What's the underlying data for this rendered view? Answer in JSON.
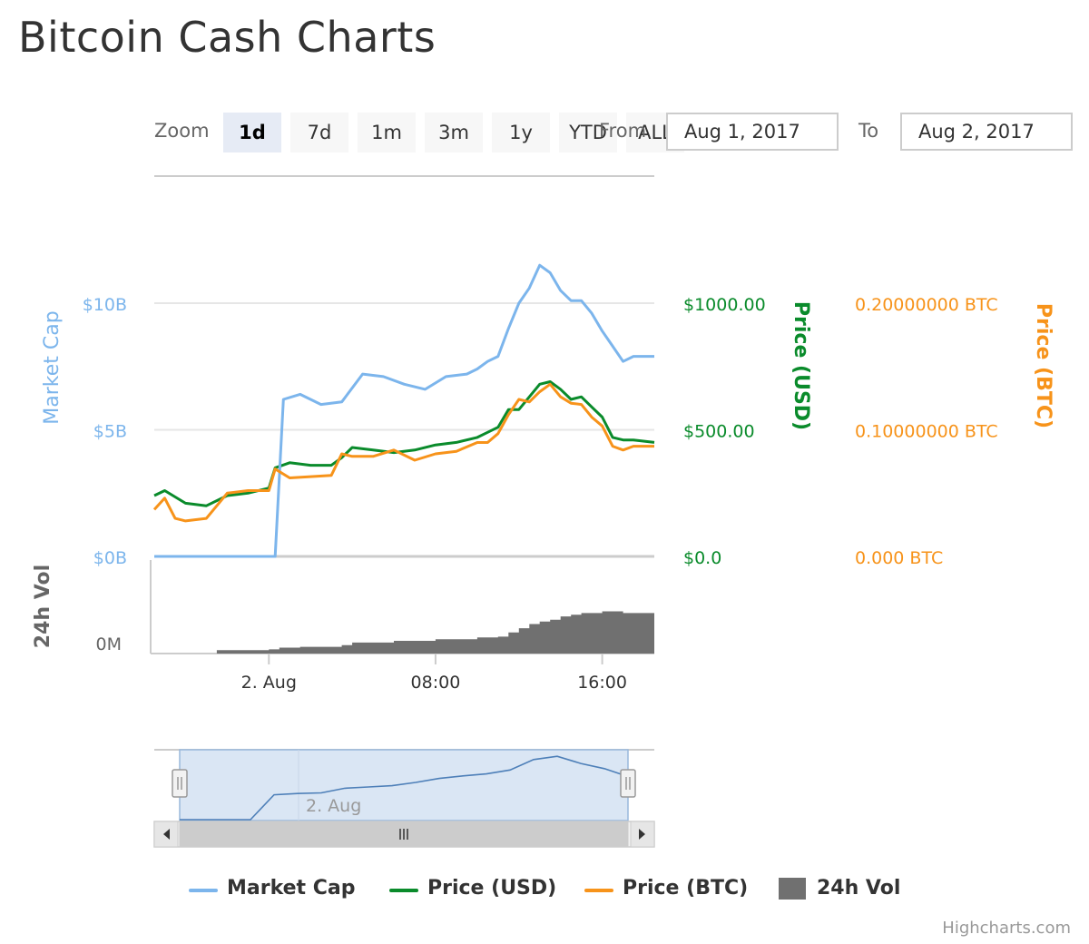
{
  "title": "Bitcoin Cash Charts",
  "range_selector": {
    "zoom_label": "Zoom",
    "buttons": [
      {
        "label": "1d",
        "active": true
      },
      {
        "label": "7d",
        "active": false
      },
      {
        "label": "1m",
        "active": false
      },
      {
        "label": "3m",
        "active": false
      },
      {
        "label": "1y",
        "active": false
      },
      {
        "label": "YTD",
        "active": false
      },
      {
        "label": "ALL",
        "active": false
      }
    ],
    "from_label": "From",
    "from_value": "Aug 1, 2017",
    "to_label": "To",
    "to_value": "Aug 2, 2017"
  },
  "chart_data": {
    "type": "line",
    "colors": {
      "market_cap": "#7cb5ec",
      "price_usd": "#0a8b2b",
      "price_btc": "#f7931a",
      "volume": "#707070"
    },
    "axes": {
      "market_cap": {
        "title": "Market Cap",
        "ticks": [
          "$10B",
          "$5B",
          "$0B"
        ],
        "range": [
          0,
          10000000000
        ]
      },
      "price_usd": {
        "title": "Price (USD)",
        "ticks": [
          "$1000.00",
          "$500.00",
          "$0.0"
        ],
        "range": [
          0,
          1000
        ]
      },
      "price_btc": {
        "title": "Price (BTC)",
        "ticks": [
          "0.20000000 BTC",
          "0.10000000 BTC",
          "0.000 BTC"
        ],
        "range": [
          0,
          0.2
        ]
      },
      "volume": {
        "title": "24h Vol",
        "ticks": [
          "0M"
        ]
      },
      "x": {
        "ticks": [
          "2. Aug",
          "08:00",
          "16:00"
        ],
        "range_hours": [
          -5.5,
          18.5
        ]
      }
    },
    "series": [
      {
        "name": "Market Cap",
        "axis": "market_cap",
        "x": [
          -5.5,
          -3.5,
          -1.5,
          0.3,
          0.7,
          1.5,
          2.5,
          3.5,
          4.5,
          5.5,
          6.5,
          7.5,
          8.5,
          9.5,
          10.0,
          10.5,
          11.0,
          11.5,
          12.0,
          12.5,
          13.0,
          13.5,
          14.0,
          14.5,
          15.0,
          15.5,
          16.0,
          16.5,
          17.0,
          17.5,
          18.5
        ],
        "y": [
          0,
          0,
          0,
          0,
          6200000000,
          6400000000,
          6000000000,
          6100000000,
          7200000000,
          7100000000,
          6800000000,
          6600000000,
          7100000000,
          7200000000,
          7400000000,
          7700000000,
          7900000000,
          9000000000,
          10000000000,
          10600000000,
          11500000000,
          11200000000,
          10500000000,
          10100000000,
          10100000000,
          9600000000,
          8900000000,
          8300000000,
          7700000000,
          7900000000,
          7900000000
        ]
      },
      {
        "name": "Price (USD)",
        "axis": "price_usd",
        "x": [
          -5.5,
          -5.0,
          -4.0,
          -3.0,
          -2.0,
          -1.0,
          0.0,
          0.3,
          1.0,
          2.0,
          3.0,
          3.5,
          4.0,
          5.0,
          6.0,
          7.0,
          8.0,
          9.0,
          10.0,
          10.5,
          11.0,
          11.5,
          12.0,
          12.5,
          13.0,
          13.5,
          14.0,
          14.5,
          15.0,
          15.5,
          16.0,
          16.5,
          17.0,
          17.5,
          18.5
        ],
        "y": [
          240,
          260,
          210,
          200,
          240,
          250,
          270,
          350,
          370,
          360,
          360,
          390,
          430,
          420,
          410,
          420,
          440,
          450,
          470,
          490,
          510,
          580,
          580,
          630,
          680,
          690,
          660,
          620,
          630,
          590,
          550,
          470,
          460,
          460,
          450
        ]
      },
      {
        "name": "Price (BTC)",
        "axis": "price_btc",
        "x": [
          -5.5,
          -5.0,
          -4.5,
          -4.0,
          -3.0,
          -2.0,
          -1.0,
          0.0,
          0.3,
          1.0,
          2.0,
          3.0,
          3.5,
          4.0,
          5.0,
          6.0,
          7.0,
          8.0,
          9.0,
          10.0,
          10.5,
          11.0,
          11.5,
          12.0,
          12.5,
          13.0,
          13.5,
          14.0,
          14.5,
          15.0,
          15.5,
          16.0,
          16.5,
          17.0,
          17.5,
          18.5
        ],
        "y": [
          0.037,
          0.046,
          0.03,
          0.028,
          0.03,
          0.05,
          0.052,
          0.052,
          0.069,
          0.062,
          0.063,
          0.064,
          0.081,
          0.079,
          0.079,
          0.084,
          0.076,
          0.081,
          0.083,
          0.09,
          0.09,
          0.097,
          0.112,
          0.124,
          0.122,
          0.13,
          0.136,
          0.126,
          0.121,
          0.12,
          0.11,
          0.103,
          0.087,
          0.084,
          0.087,
          0.087
        ]
      },
      {
        "name": "24h Vol",
        "axis": "volume",
        "type": "area",
        "x": [
          -5.5,
          -3.0,
          -2.5,
          0.0,
          0.5,
          1.5,
          3.5,
          4.0,
          6.0,
          8.0,
          10.0,
          11.0,
          11.5,
          12.0,
          12.5,
          13.0,
          13.5,
          14.0,
          14.5,
          15.0,
          16.0,
          17.0,
          18.5
        ],
        "y": [
          0,
          0,
          0.04,
          0.05,
          0.07,
          0.08,
          0.1,
          0.13,
          0.15,
          0.17,
          0.19,
          0.2,
          0.25,
          0.3,
          0.35,
          0.38,
          0.4,
          0.44,
          0.46,
          0.48,
          0.5,
          0.48,
          0.5
        ]
      }
    ],
    "navigator": {
      "label": "2. Aug",
      "y": [
        0,
        0,
        0,
        0,
        0.38,
        0.4,
        0.41,
        0.48,
        0.5,
        0.52,
        0.57,
        0.63,
        0.67,
        0.7,
        0.76,
        0.92,
        0.97,
        0.86,
        0.78,
        0.66
      ]
    },
    "grid": true
  },
  "legend": [
    "Market Cap",
    "Price (USD)",
    "Price (BTC)",
    "24h Vol"
  ],
  "credits": "Highcharts.com"
}
